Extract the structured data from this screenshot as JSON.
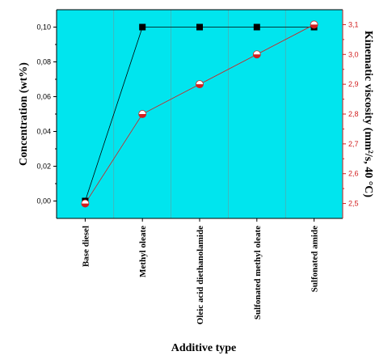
{
  "chart_data": {
    "type": "line",
    "title": "",
    "xlabel": "Additive type",
    "ylabel_left": "Concentration (wt%)",
    "ylabel_right": "Kinematic viscosity (mm²/s, 40 °C)",
    "categories": [
      "Base diesel",
      "Methyl oleate",
      "Oleic acid diethanolamide",
      "Sulfonated methyl oleate",
      "Sulfonated amide"
    ],
    "y_left": {
      "range": [
        -0.01,
        0.11
      ],
      "ticks": [
        "0,00",
        "0,02",
        "0,04",
        "0,06",
        "0,08",
        "0,10"
      ],
      "tick_values": [
        0,
        0.02,
        0.04,
        0.06,
        0.08,
        0.1
      ]
    },
    "y_right": {
      "range": [
        2.45,
        3.15
      ],
      "ticks": [
        "2,5",
        "2,6",
        "2,7",
        "2,8",
        "2,9",
        "3,0",
        "3,1"
      ],
      "tick_values": [
        2.5,
        2.6,
        2.7,
        2.8,
        2.9,
        3.0,
        3.1
      ]
    },
    "grid": true,
    "series": [
      {
        "axis": "left",
        "marker": "square",
        "color": "#000000",
        "values": [
          0.0,
          0.1,
          0.1,
          0.1,
          0.1
        ]
      },
      {
        "axis": "right",
        "marker": "half-circle",
        "color": "#d21e1e",
        "values": [
          2.5,
          2.8,
          2.9,
          3.0,
          3.1
        ]
      }
    ],
    "plot_background": "#00e5ee"
  }
}
